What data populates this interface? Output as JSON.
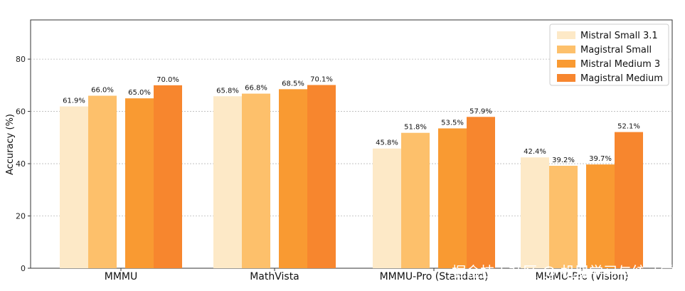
{
  "chart_data": {
    "type": "bar",
    "categories": [
      "MMMU",
      "MathVista",
      "MMMU-Pro (Standard)",
      "MMMU-Pro (Vision)"
    ],
    "series": [
      {
        "name": "Mistral Small 3.1",
        "values": [
          61.9,
          65.8,
          45.8,
          42.4
        ],
        "color": "#fde9c7"
      },
      {
        "name": "Magistral Small",
        "values": [
          66.0,
          66.8,
          51.8,
          39.2
        ],
        "color": "#fdc06b"
      },
      {
        "name": "Mistral Medium 3",
        "values": [
          65.0,
          68.5,
          53.5,
          39.7
        ],
        "color": "#f99a32"
      },
      {
        "name": "Magistral Medium",
        "values": [
          70.0,
          70.1,
          57.9,
          52.1
        ],
        "color": "#f7862e"
      }
    ],
    "data_labels": [
      [
        "61.9%",
        "65.8%",
        "45.8%",
        "42.4%"
      ],
      [
        "66.0%",
        "66.8%",
        "51.8%",
        "39.2%"
      ],
      [
        "65.0%",
        "68.5%",
        "53.5%",
        "39.7%"
      ],
      [
        "70.0%",
        "70.1%",
        "57.9%",
        "52.1%"
      ]
    ],
    "ylabel": "Accuracy (%)",
    "xlabel": "",
    "ylim": [
      0,
      95
    ],
    "yticks": [
      0,
      20,
      40,
      60,
      80
    ],
    "grid": true,
    "legend_position": "top-right"
  },
  "watermark": "掘金技术社区 @ 机器学习与统计学"
}
